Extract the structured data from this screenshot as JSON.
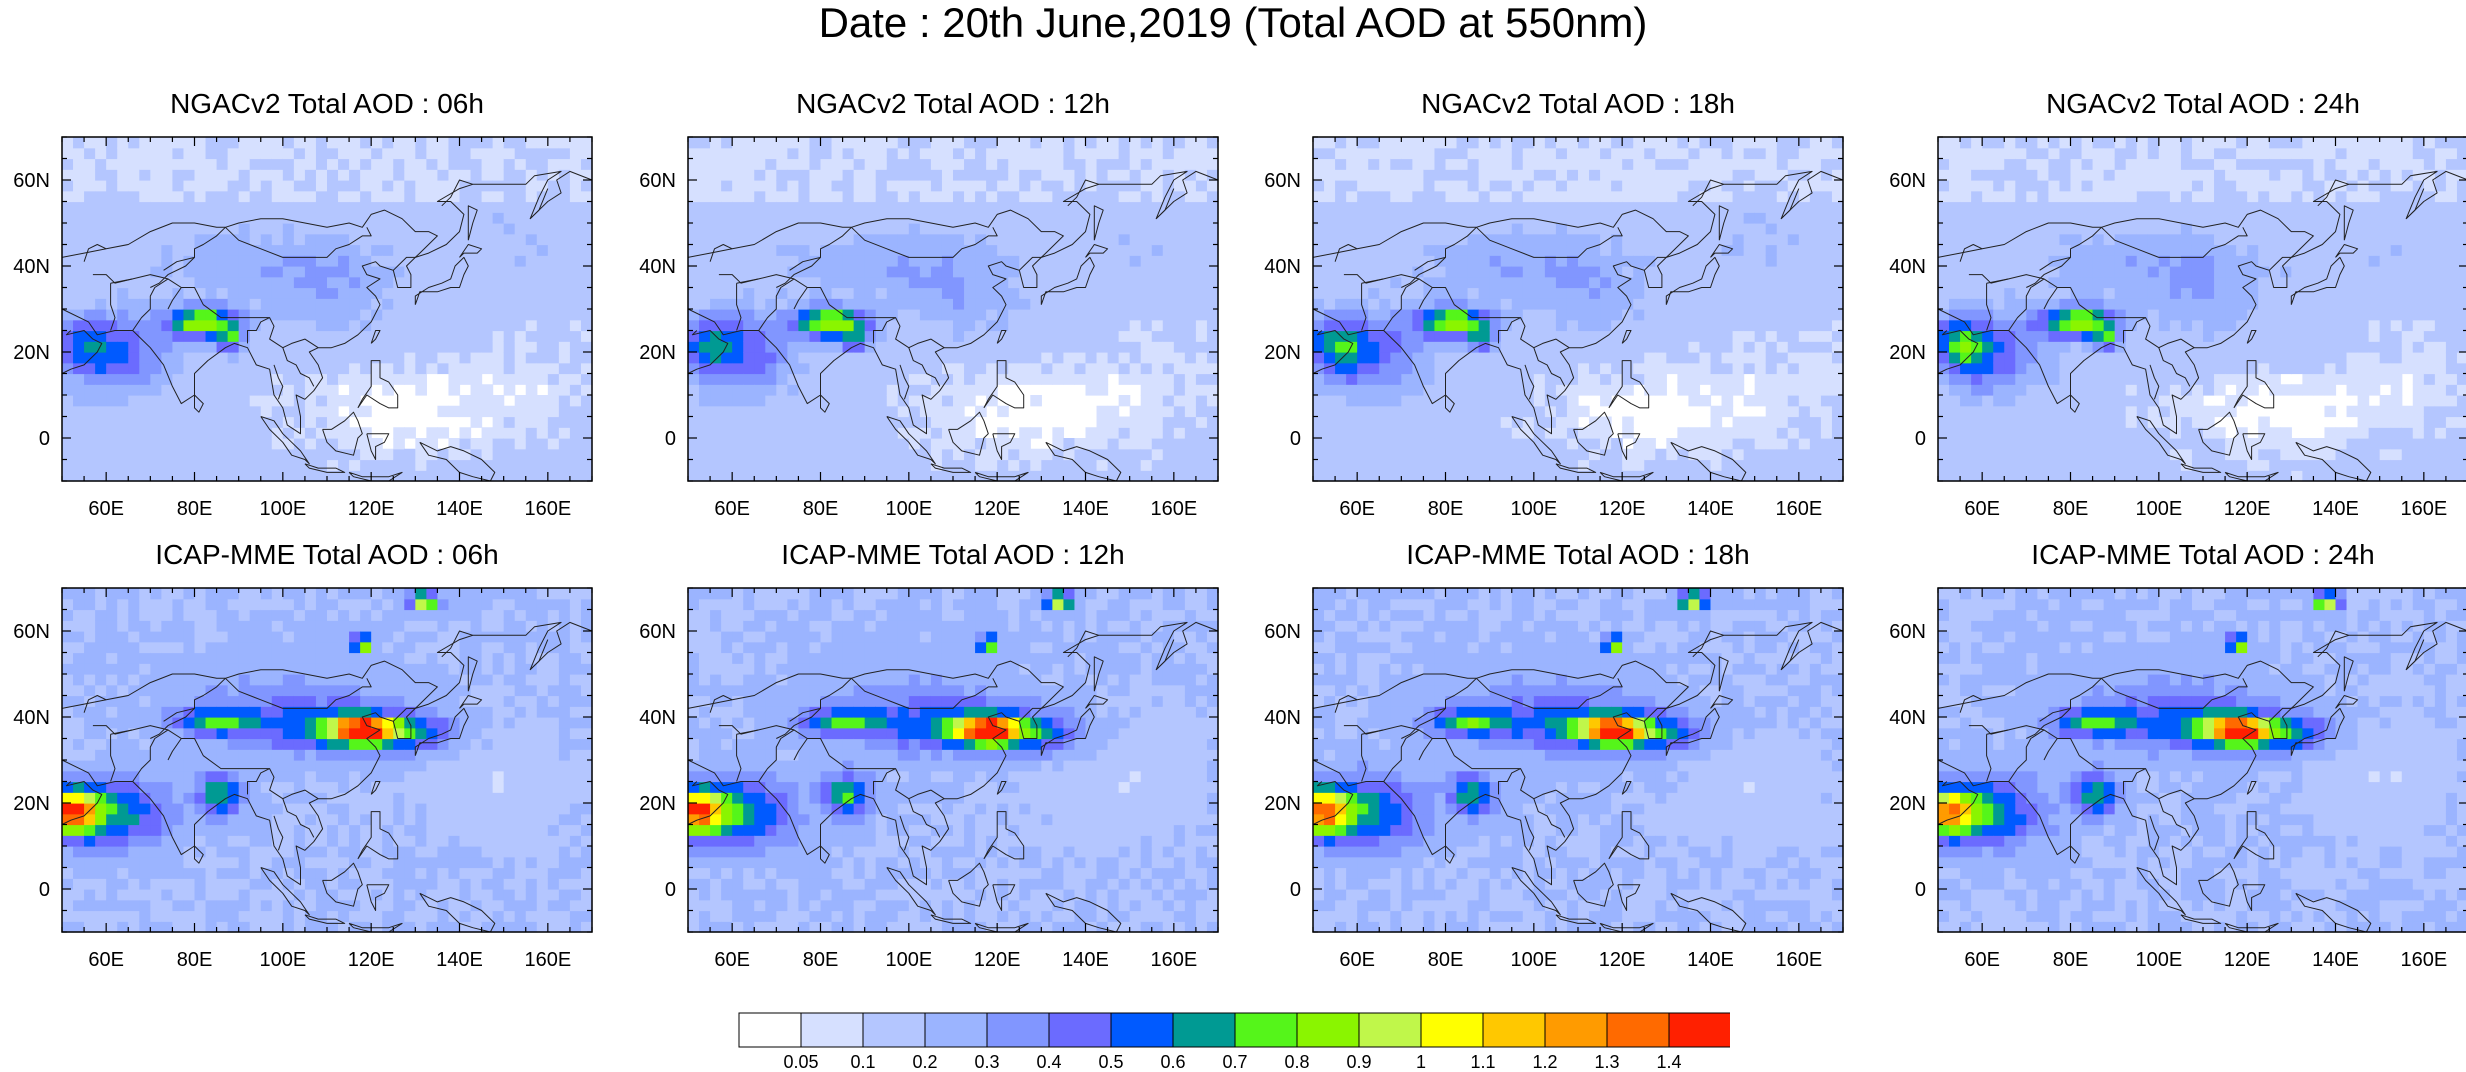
{
  "title": "Date : 20th June,2019 (Total AOD at 550nm)",
  "panels": [
    {
      "title": "NGACv2 Total AOD : 06h",
      "model": "NGACv2"
    },
    {
      "title": "NGACv2 Total AOD : 12h",
      "model": "NGACv2"
    },
    {
      "title": "NGACv2 Total AOD : 18h",
      "model": "NGACv2"
    },
    {
      "title": "NGACv2 Total AOD : 24h",
      "model": "NGACv2"
    },
    {
      "title": "ICAP-MME Total AOD : 06h",
      "model": "ICAP-MME"
    },
    {
      "title": "ICAP-MME Total AOD : 12h",
      "model": "ICAP-MME"
    },
    {
      "title": "ICAP-MME Total AOD : 18h",
      "model": "ICAP-MME"
    },
    {
      "title": "ICAP-MME Total AOD : 24h",
      "model": "ICAP-MME"
    }
  ],
  "map": {
    "lon_ticks": [
      "60E",
      "80E",
      "100E",
      "120E",
      "140E",
      "160E"
    ],
    "lon_values": [
      60,
      80,
      100,
      120,
      140,
      160
    ],
    "lat_ticks": [
      "60N",
      "40N",
      "20N",
      "0"
    ],
    "lat_values": [
      60,
      40,
      20,
      0
    ],
    "lon_range": [
      50,
      170
    ],
    "lat_range": [
      -10,
      70
    ]
  },
  "colorbar": {
    "labels": [
      "0.05",
      "0.1",
      "0.2",
      "0.3",
      "0.4",
      "0.5",
      "0.6",
      "0.7",
      "0.8",
      "0.9",
      "1",
      "1.1",
      "1.2",
      "1.3",
      "1.4"
    ],
    "colors": [
      "#ffffff",
      "#d6e0ff",
      "#b4c6ff",
      "#9bb4ff",
      "#8196ff",
      "#6b6bff",
      "#005aff",
      "#009a93",
      "#55f51a",
      "#8af500",
      "#c0f74a",
      "#ffff00",
      "#ffc800",
      "#ff9b00",
      "#ff6a00",
      "#ff2000"
    ]
  }
}
